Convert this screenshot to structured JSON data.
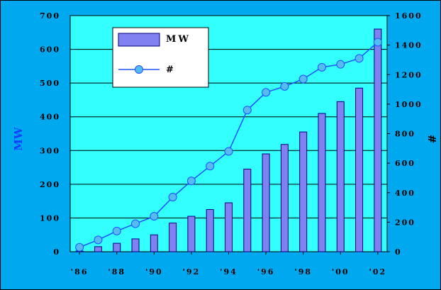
{
  "chart_data": {
    "type": "bar+line",
    "x_tick_labels": [
      "'86",
      "'88",
      "'90",
      "'92",
      "'94",
      "'96",
      "'98",
      "'00",
      "'02"
    ],
    "x": [
      1986,
      1987,
      1988,
      1989,
      1990,
      1991,
      1992,
      1993,
      1994,
      1995,
      1996,
      1997,
      1998,
      1999,
      2000,
      2001,
      2002
    ],
    "series": [
      {
        "name": "MW",
        "type": "bar",
        "axis": "left",
        "values": [
          2,
          15,
          25,
          38,
          50,
          85,
          105,
          125,
          145,
          245,
          290,
          318,
          355,
          410,
          445,
          485,
          660
        ]
      },
      {
        "name": "#",
        "type": "line",
        "axis": "right",
        "values": [
          30,
          80,
          140,
          190,
          240,
          370,
          480,
          580,
          680,
          960,
          1080,
          1120,
          1170,
          1250,
          1270,
          1310,
          1420
        ]
      }
    ],
    "ylabel": "MW",
    "y2label": "#",
    "ylim": [
      0,
      700
    ],
    "y2lim": [
      0,
      1600
    ],
    "y_ticks": [
      "0",
      "100",
      "200",
      "300",
      "400",
      "500",
      "600",
      "700"
    ],
    "y2_ticks": [
      "0",
      "200",
      "400",
      "600",
      "800",
      "1000",
      "1200",
      "1400",
      "1600"
    ],
    "grid": true,
    "legend": "top-left",
    "colors": {
      "outer_bg": "#00a8f0",
      "plot_bg": "#33ffff",
      "bar_fill": "#8080f0",
      "bar_stroke": "#000080",
      "line": "#2050ff",
      "marker": "#55bbf0",
      "axis_title": "#1040ff"
    }
  }
}
